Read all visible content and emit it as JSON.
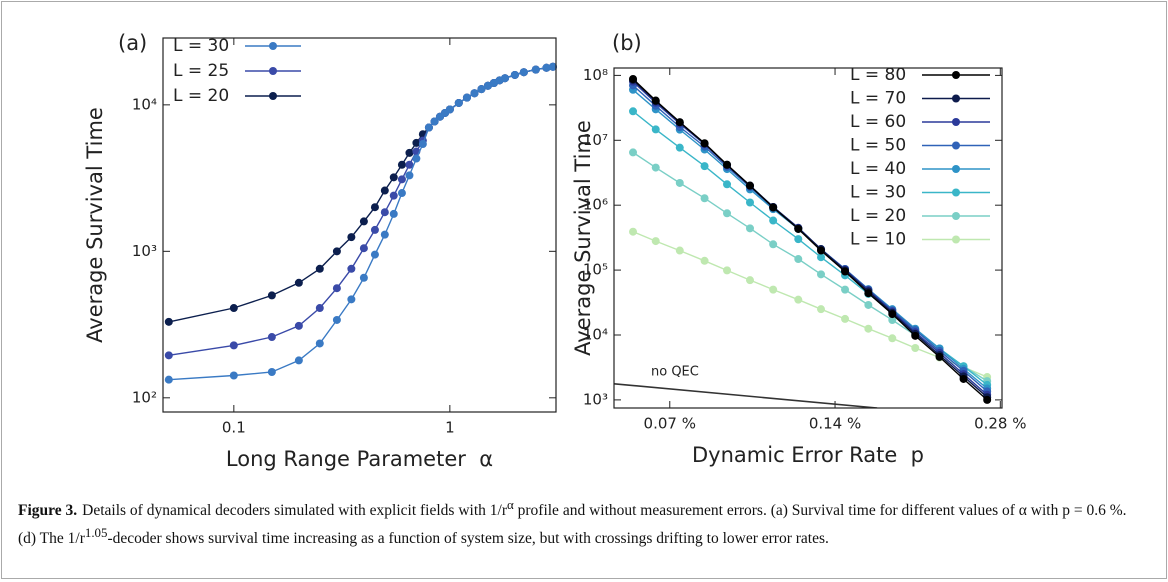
{
  "chart_data": [
    {
      "type": "line",
      "panel_label": "(a)",
      "xlabel": "Long Range Parameter  α",
      "ylabel": "Average Survival Time",
      "xscale": "log",
      "yscale": "log",
      "legend": "upper left",
      "marker": true,
      "xlim": [
        0.047,
        3.1
      ],
      "ylim": [
        80,
        28600
      ],
      "xticks": [
        0.1,
        1
      ],
      "yticks": [
        {
          "value": 100,
          "label": "10²"
        },
        {
          "value": 1000,
          "label": "10³"
        },
        {
          "value": 10000,
          "label": "10⁴"
        }
      ],
      "x": [
        0.05,
        0.1,
        0.15,
        0.2,
        0.25,
        0.3,
        0.35,
        0.4,
        0.45,
        0.5,
        0.55,
        0.6,
        0.65,
        0.7,
        0.75,
        0.8,
        0.85,
        0.9,
        0.95,
        1.0,
        1.1,
        1.2,
        1.3,
        1.4,
        1.5,
        1.6,
        1.7,
        1.8,
        2.0,
        2.2,
        2.5,
        2.8,
        3.0
      ],
      "series": [
        {
          "name": "L = 30",
          "color": "#3a7ac4",
          "values": [
            133,
            142,
            150,
            180,
            235,
            340,
            470,
            660,
            950,
            1300,
            1800,
            2500,
            3300,
            4300,
            5400,
            7000,
            7700,
            8300,
            8800,
            9300,
            10300,
            11200,
            12000,
            12800,
            13500,
            14100,
            14700,
            15200,
            16000,
            16700,
            17400,
            17900,
            18200
          ]
        },
        {
          "name": "L = 25",
          "color": "#3a4aa8",
          "values": [
            195,
            228,
            260,
            310,
            410,
            560,
            760,
            1050,
            1400,
            1850,
            2400,
            3100,
            3900,
            4800,
            5700,
            7000,
            7700,
            8300,
            8800,
            9300,
            10300,
            11200,
            12000,
            12800,
            13500,
            14100,
            14700,
            15200,
            16000,
            16700,
            17400,
            17900,
            18200
          ]
        },
        {
          "name": "L = 20",
          "color": "#0c1f4e",
          "values": [
            330,
            410,
            500,
            610,
            760,
            1000,
            1250,
            1600,
            2000,
            2600,
            3200,
            3900,
            4700,
            5500,
            6300,
            7000,
            7700,
            8300,
            8800,
            9300,
            10300,
            11200,
            12000,
            12800,
            13500,
            14100,
            14700,
            15200,
            16000,
            16700,
            17400,
            17900,
            18200
          ]
        }
      ]
    },
    {
      "type": "line",
      "panel_label": "(b)",
      "xlabel": "Dynamic Error Rate  p",
      "ylabel": "Average Survival Time",
      "xscale": "log",
      "yscale": "log",
      "legend": "upper right",
      "marker": true,
      "xlim": [
        0.0554,
        0.282
      ],
      "ylim": [
        750,
        130000000
      ],
      "xticks": [
        {
          "value": 0.07,
          "label": "0.07 %"
        },
        {
          "value": 0.14,
          "label": "0.14 %"
        },
        {
          "value": 0.28,
          "label": "0.28 %"
        }
      ],
      "yticks": [
        {
          "value": 1000,
          "label": "10³"
        },
        {
          "value": 10000,
          "label": "10⁴"
        },
        {
          "value": 100000,
          "label": "10⁵"
        },
        {
          "value": 1000000,
          "label": "10⁶"
        },
        {
          "value": 10000000,
          "label": "10⁷"
        },
        {
          "value": 100000000,
          "label": "10⁸"
        }
      ],
      "x": [
        0.06,
        0.066,
        0.073,
        0.081,
        0.089,
        0.098,
        0.108,
        0.12,
        0.132,
        0.146,
        0.161,
        0.178,
        0.196,
        0.217,
        0.24,
        0.265
      ],
      "series": [
        {
          "name": "L = 80",
          "color": "#000000",
          "values": [
            88000000,
            41000000,
            19000000,
            9000000,
            4200000,
            2000000,
            920000,
            430000,
            200000,
            95000,
            44000,
            21000,
            9700,
            4600,
            2100,
            1000
          ]
        },
        {
          "name": "L = 70",
          "color": "#0d1b4c",
          "values": [
            85000000,
            40000000,
            19000000,
            8900000,
            4200000,
            2000000,
            940000,
            440000,
            210000,
            99000,
            47000,
            22000,
            10400,
            4900,
            2300,
            1100
          ]
        },
        {
          "name": "L = 60",
          "color": "#2b3a9a",
          "values": [
            80000000,
            38000000,
            18000000,
            8700000,
            4100000,
            2000000,
            940000,
            450000,
            210000,
            102000,
            49000,
            23000,
            11000,
            5300,
            2500,
            1200
          ]
        },
        {
          "name": "L = 50",
          "color": "#2f62b8",
          "values": [
            70000000,
            34000000,
            16000000,
            8000000,
            3900000,
            1900000,
            910000,
            440000,
            210000,
            104000,
            50000,
            24000,
            11900,
            5700,
            2800,
            1350
          ]
        },
        {
          "name": "L = 40",
          "color": "#2e93c7",
          "values": [
            60000000,
            30000000,
            14600000,
            7200000,
            3600000,
            1750000,
            870000,
            430000,
            210000,
            104000,
            51000,
            25000,
            12500,
            6200,
            3000,
            1500
          ]
        },
        {
          "name": "L = 30",
          "color": "#3ab6c8",
          "values": [
            28000000,
            14700000,
            7700000,
            4000000,
            2100000,
            1100000,
            580000,
            300000,
            158000,
            83000,
            43000,
            23000,
            11900,
            6200,
            3300,
            1700
          ]
        },
        {
          "name": "L = 20",
          "color": "#7acfc6",
          "values": [
            6500000,
            3800000,
            2200000,
            1280000,
            750000,
            440000,
            250000,
            148000,
            86000,
            50000,
            29000,
            17000,
            9900,
            5800,
            3300,
            1950
          ]
        },
        {
          "name": "L = 10",
          "color": "#bfe8b0",
          "values": [
            390000,
            280000,
            200000,
            139000,
            99000,
            70000,
            50000,
            35000,
            25000,
            17700,
            12500,
            8900,
            6300,
            4500,
            3200,
            2250
          ]
        }
      ],
      "annotation": {
        "text": "no QEC",
        "color": "#333333",
        "x": [
          0.0554,
          0.167
        ],
        "values": [
          1770,
          750
        ]
      }
    }
  ],
  "caption": {
    "label": "Figure 3.",
    "segments": [
      "Details of dynamical decoders simulated with explicit fields with 1/r",
      "α",
      " profile and without measurement errors. (a) Survival time for different values of α with p = 0.6 %. (d) The 1/r",
      "1.05",
      "-decoder shows survival time increasing as a function of system size, but with crossings drifting to lower error rates."
    ]
  }
}
